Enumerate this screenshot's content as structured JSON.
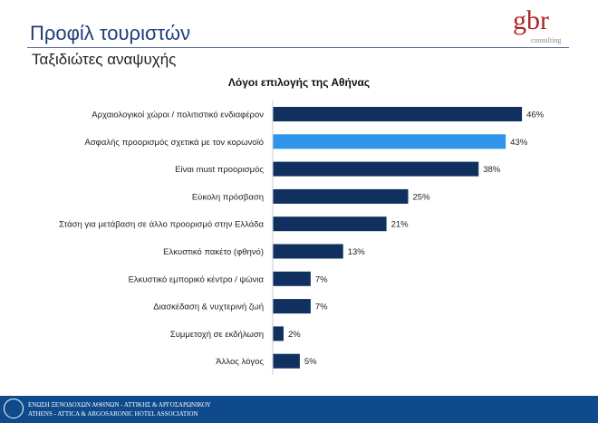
{
  "header": {
    "title": "Προφίλ τουριστών",
    "subtitle": "Ταξιδιώτες αναψυχής",
    "logo": "gbr",
    "logo_sub": "consulting"
  },
  "footer": {
    "line1": "ΕΝΩΣΗ ΞΕΝΟΔΟΧΩΝ ΑΘΗΝΩΝ - ΑΤΤΙΚΗΣ & ΑΡΓΟΣΑΡΩΝΙΚΟΥ",
    "line2": "ATHENS - ATTICA & ARGOSARONIC HOTEL ASSOCIATION"
  },
  "chart_data": {
    "type": "bar",
    "orientation": "horizontal",
    "title": "Λόγοι επιλογής της Αθήνας",
    "categories": [
      "Αρχαιολογικοί χώροι / πολιτιστικό ενδιαφέρον",
      "Ασφαλής προορισμός σχετικά με τον κορωνοϊό",
      "Είναι must προορισμός",
      "Εύκολη πρόσβαση",
      "Στάση για μετάβαση σε άλλο προορισμό στην Ελλάδα",
      "Ελκυστικό πακέτο (φθηνό)",
      "Ελκυστικό εμπορικό κέντρο / ψώνια",
      "Διασκέδαση & νυχτερινή ζωή",
      "Συμμετοχή σε εκδήλωση",
      "Άλλος λόγος"
    ],
    "values": [
      46,
      43,
      38,
      25,
      21,
      13,
      7,
      7,
      2,
      5
    ],
    "labels": [
      "46%",
      "43%",
      "38%",
      "25%",
      "21%",
      "13%",
      "7%",
      "7%",
      "2%",
      "5%"
    ],
    "highlight_index": 1,
    "colors": {
      "default": "#10305f",
      "highlight": "#2e95e8"
    },
    "unit": "%"
  }
}
